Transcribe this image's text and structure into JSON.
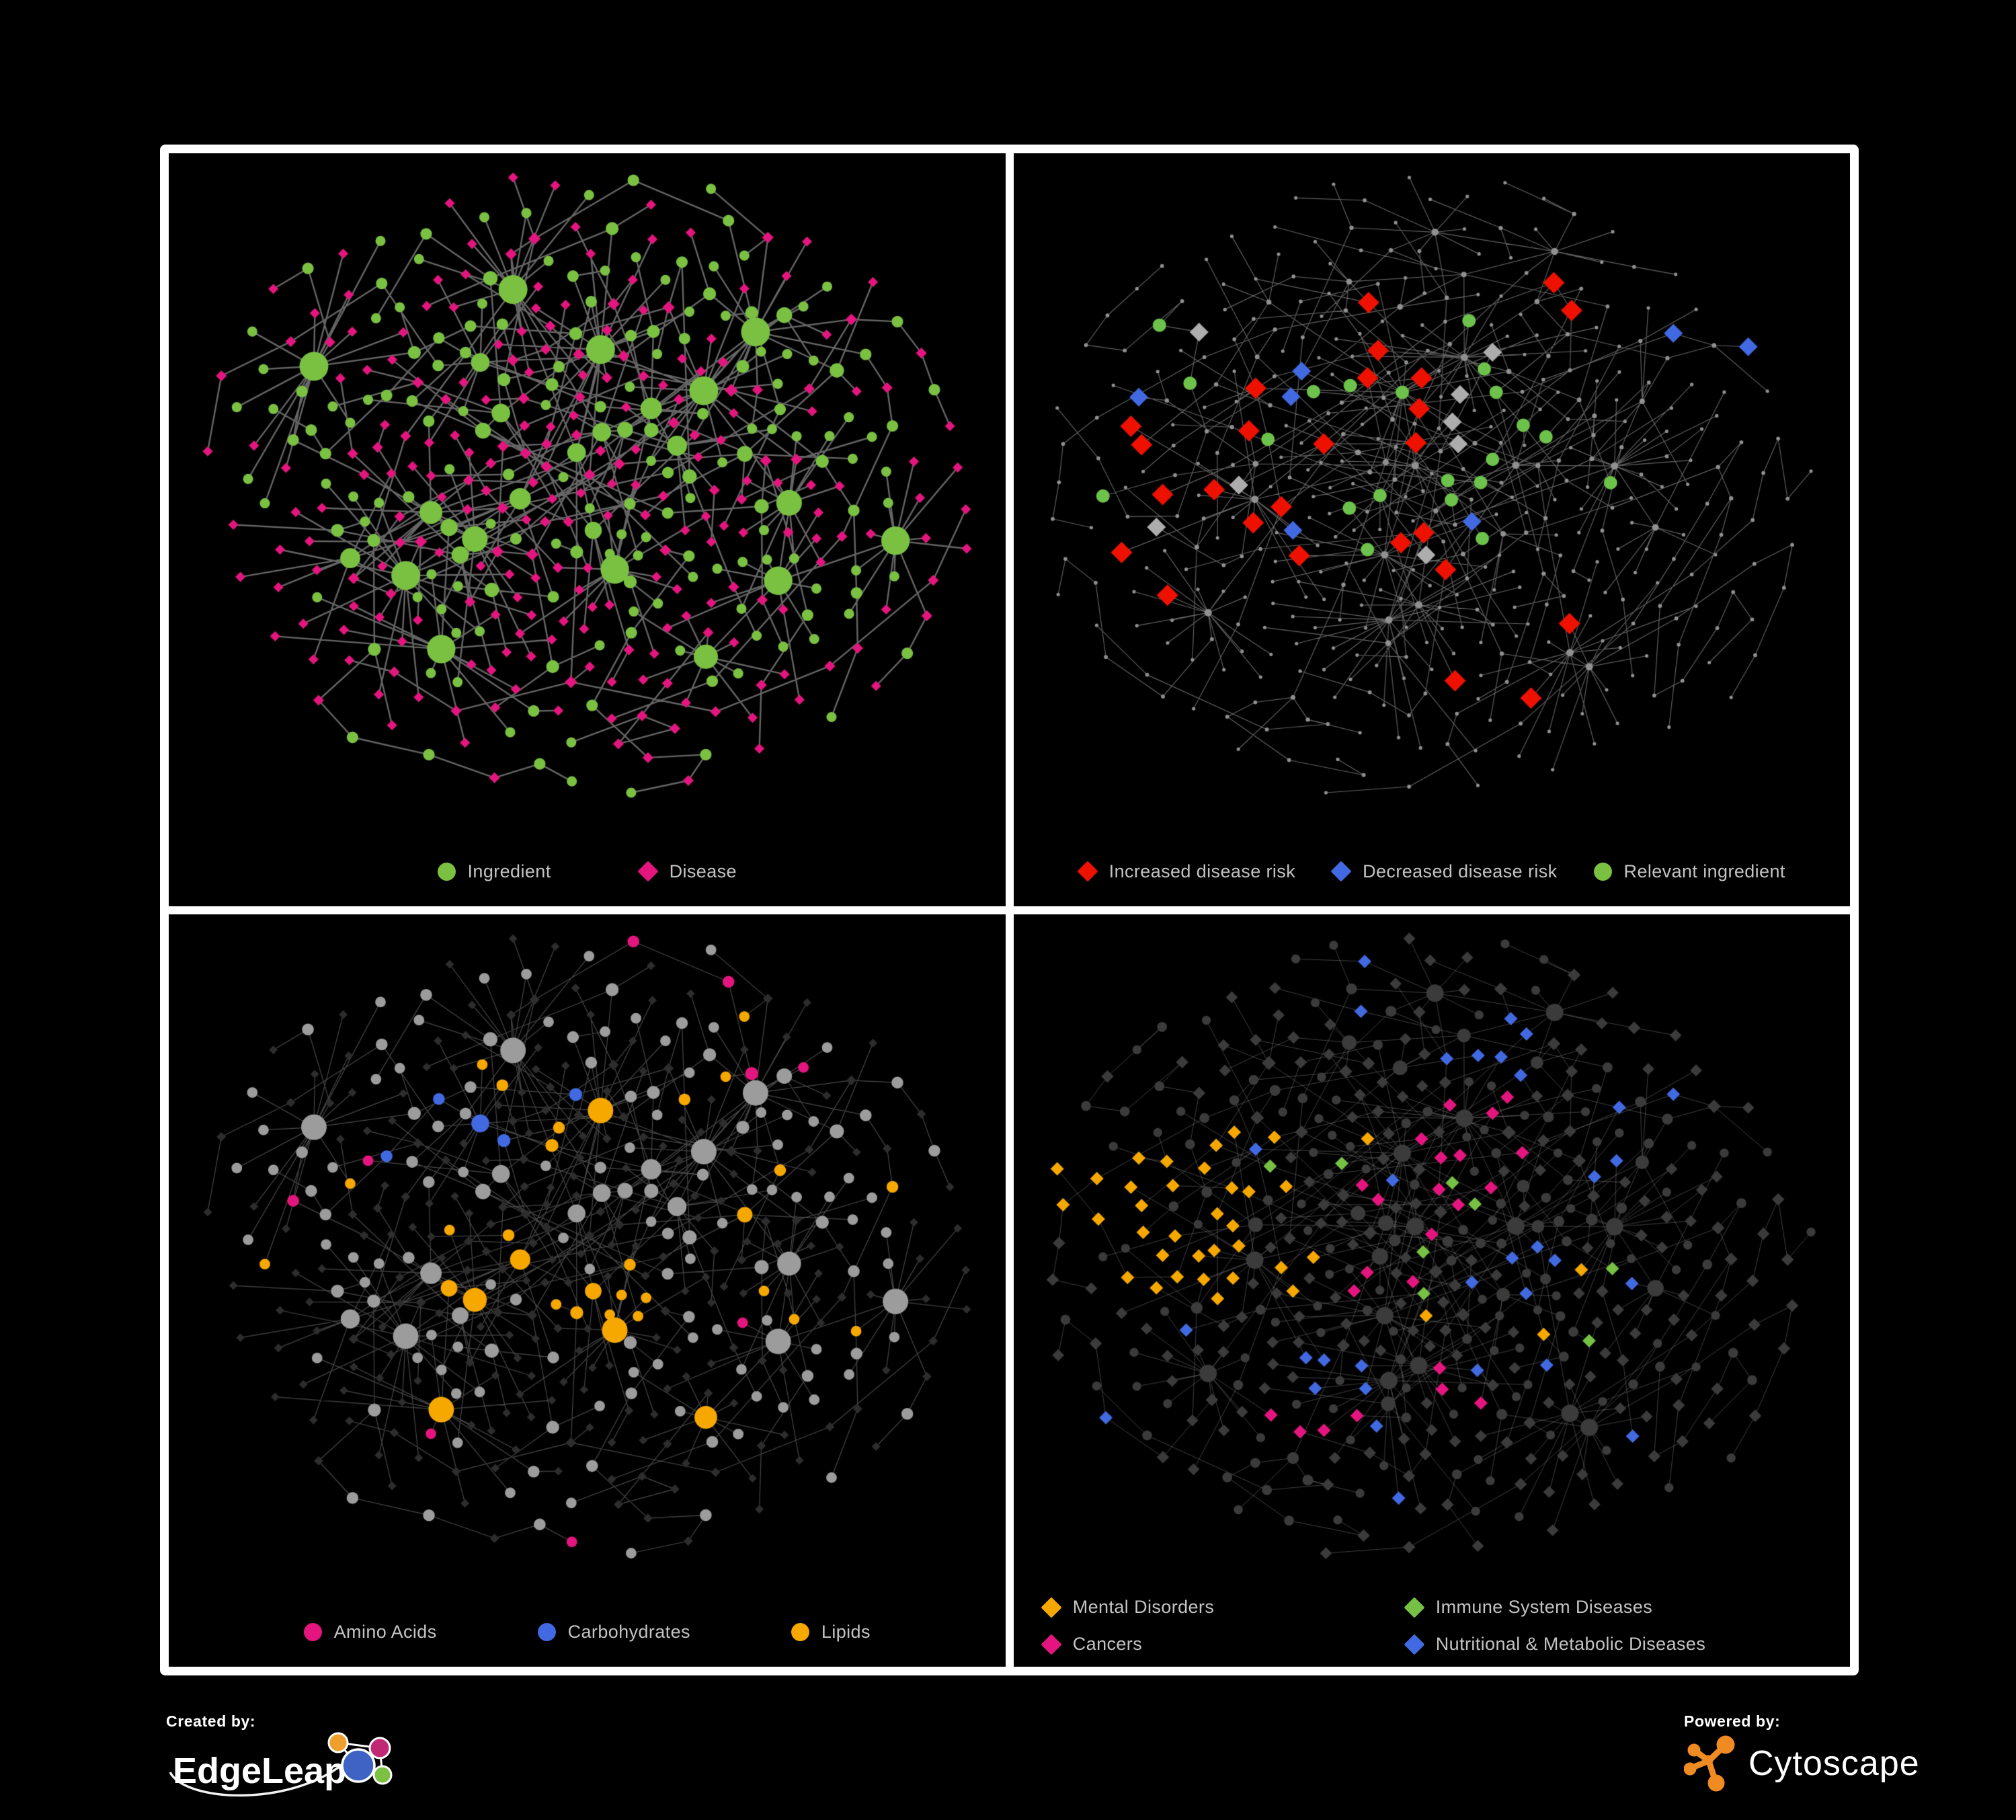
{
  "page": {
    "background": "#000000",
    "frame_color": "#ffffff"
  },
  "footer": {
    "created_by_label": "Created by:",
    "created_by_name": "EdgeLeap",
    "powered_by_label": "Powered by:",
    "powered_by_name": "Cytoscape"
  },
  "colors": {
    "ingredient_green": "#7AC142",
    "disease_magenta": "#E5157F",
    "increased_red": "#EE1100",
    "decreased_blue": "#4169E1",
    "unchanged_silver": "#ADADAD",
    "lipids_orange": "#F6A800",
    "immune_green": "#76C043",
    "edge_gray": "#6C6C6C",
    "legend_text": "#C3C3C3",
    "cytoscape_orange": "#EF8B22",
    "edgeleap_blue": "#3E63C4",
    "edgeleap_orange": "#EFA02C",
    "edgeleap_magenta": "#C02874",
    "edgeleap_green": "#7CC142"
  },
  "panels": [
    {
      "name": "ingredient-disease-network",
      "legend_layout": "row",
      "legend": [
        {
          "shape": "circle",
          "color": "#7AC142",
          "label": "Ingredient"
        },
        {
          "shape": "diamond",
          "color": "#E5157F",
          "label": "Disease"
        }
      ]
    },
    {
      "name": "disease-risk-network",
      "legend_layout": "row-tight",
      "legend": [
        {
          "shape": "diamond",
          "color": "#EE1100",
          "label": "Increased disease risk"
        },
        {
          "shape": "diamond",
          "color": "#4169E1",
          "label": "Decreased disease risk"
        },
        {
          "shape": "circle",
          "color": "#7AC142",
          "label": "Relevant ingredient"
        }
      ]
    },
    {
      "name": "compound-class-network",
      "legend_layout": "row-wide",
      "legend": [
        {
          "shape": "circle",
          "color": "#E5157F",
          "label": "Amino Acids"
        },
        {
          "shape": "circle",
          "color": "#4169E1",
          "label": "Carbohydrates"
        },
        {
          "shape": "circle",
          "color": "#F6A800",
          "label": "Lipids"
        }
      ]
    },
    {
      "name": "disease-class-network",
      "legend_layout": "grid",
      "legend": [
        {
          "shape": "diamond",
          "color": "#F6A800",
          "label": "Mental Disorders"
        },
        {
          "shape": "diamond",
          "color": "#76C043",
          "label": "Immune System Diseases"
        },
        {
          "shape": "diamond",
          "color": "#E5157F",
          "label": "Cancers"
        },
        {
          "shape": "diamond",
          "color": "#4169E1",
          "label": "Nutritional & Metabolic Diseases"
        }
      ]
    }
  ],
  "chart_data": {
    "type": "network",
    "description": "Four views of the same ingredient-disease association network rendered on black. Circles are ingredients, diamonds are diseases. Panel 1 colors nodes by type (green ingredient circles, magenta disease diamonds). Panel 2 mutes the network to small gray dots and highlights diseases with increased risk (red diamonds), decreased risk (blue diamonds), unchanged (silver diamonds) and relevant ingredients (green circles). Panel 3 highlights ingredient circles by compound class (Amino Acids pink, Carbohydrates blue, Lipids orange; others gray, diseases dark gray). Panel 4 highlights disease diamonds by disease class (Mental Disorders orange cluster at left, Cancers magenta central cluster, Nutritional & Metabolic Diseases blue scattered right, Immune System Diseases green; others dark gray).",
    "approx_nodes": 430,
    "approx_edges": 470,
    "panel_summaries": [
      {
        "panel": "ingredient-disease-network",
        "ingredient_circles_green": 160,
        "disease_diamonds_magenta": 270
      },
      {
        "panel": "disease-risk-network",
        "increased_risk_red_diamonds": 26,
        "decreased_risk_blue_diamonds": 7,
        "unchanged_silver_diamonds": 8,
        "relevant_ingredient_green_circles": 21
      },
      {
        "panel": "compound-class-network",
        "amino_acid_circles_pink": 18,
        "carbohydrate_circles_blue": 12,
        "lipid_circles_orange": 70
      },
      {
        "panel": "disease-class-network",
        "mental_disorder_diamonds_orange": 95,
        "cancer_diamonds_pink": 60,
        "nutritional_metabolic_diamonds_blue": 70,
        "immune_system_diamonds_green": 8
      }
    ]
  },
  "render": {
    "graphs": {
      "A": {
        "seed": 90210,
        "core": 250,
        "prefP": 0.8,
        "bursts": 12,
        "burstMin": 5,
        "burstMax": 16,
        "chains": 14,
        "chainMin": 2,
        "chainMax": 6,
        "cross": 34,
        "circleP": 0.4,
        "boxW": 1120,
        "boxH": 880,
        "iters": 170
      },
      "B": {
        "seed": 5150,
        "core": 270,
        "prefP": 0.78,
        "bursts": 14,
        "burstMin": 5,
        "burstMax": 14,
        "chains": 18,
        "chainMin": 3,
        "chainMax": 7,
        "cross": 30,
        "circleP": 0.38,
        "boxW": 1150,
        "boxH": 930,
        "iters": 170
      }
    },
    "panels": [
      {
        "graph": "A",
        "mode": "typed",
        "selSeed": 11,
        "edge": {
          "color": "#6C6C6C",
          "width": 2.4,
          "alpha": 0.95
        },
        "diamond": {
          "color": "#E5157F",
          "base": 7,
          "degScale": 0.55,
          "degMax": 5
        },
        "circle": {
          "color": "#7AC142",
          "base": 6.5,
          "degScale": 1.05,
          "degMax": 15
        }
      },
      {
        "graph": "B",
        "mode": "dots",
        "selSeed": 22,
        "edge": {
          "color": "#7C7C7C",
          "width": 1.15,
          "alpha": 0.8
        },
        "dot": {
          "color": "#909090",
          "base": 2.3,
          "degScale": 0.3,
          "degMax": 3.2
        },
        "highlights": [
          {
            "shape": "d",
            "color": "#EE1100",
            "r": 16,
            "regions": [
              [
                0.05,
                0.55,
                0.22,
                0.68,
                20
              ],
              [
                0.5,
                0.8,
                0.7,
                0.88,
                3
              ],
              [
                0.3,
                0.7,
                0.08,
                0.22,
                3
              ]
            ]
          },
          {
            "shape": "d",
            "color": "#4169E1",
            "r": 14,
            "regions": [
              [
                0.08,
                0.35,
                0.3,
                0.58,
                4
              ],
              [
                0.72,
                0.98,
                0.1,
                0.3,
                2
              ],
              [
                0.4,
                0.6,
                0.4,
                0.6,
                1
              ]
            ]
          },
          {
            "shape": "d",
            "color": "#ADADAD",
            "r": 14,
            "regions": [
              [
                0.1,
                0.6,
                0.25,
                0.65,
                8
              ]
            ]
          },
          {
            "shape": "c",
            "color": "#6CC24A",
            "r": 10,
            "regions": [
              [
                0.05,
                0.6,
                0.2,
                0.62,
                18
              ],
              [
                0.6,
                0.82,
                0.28,
                0.5,
                3
              ]
            ]
          }
        ]
      },
      {
        "graph": "A",
        "mode": "classes",
        "selSeed": 33,
        "classShape": "c",
        "highlightR": 0,
        "edge": {
          "color": "#8F8F8F",
          "width": 1.2,
          "alpha": 0.5
        },
        "diamond": {
          "color": "#2D2D2D",
          "base": 6,
          "degScale": 0.45,
          "degMax": 4
        },
        "circle": {
          "color": "#9C9C9C",
          "base": 7,
          "degScale": 0.9,
          "degMax": 12
        },
        "classes": [
          {
            "label": "Carbohydrates",
            "color": "#4169E1",
            "anchors": [
              [
                0.42,
                0.27
              ]
            ],
            "r": 0.07,
            "pIn": 0.45,
            "pOut": 0.015
          },
          {
            "label": "Lipids",
            "color": "#F6A800",
            "anchors": [
              [
                0.44,
                0.28
              ],
              [
                0.4,
                0.52
              ],
              [
                0.53,
                0.62
              ]
            ],
            "r": 0.1,
            "pIn": 0.7,
            "pOut": 0.1
          },
          {
            "label": "Amino Acids",
            "color": "#E5157F",
            "anchors": [],
            "pOut": 0.07
          }
        ]
      },
      {
        "graph": "B",
        "mode": "classes",
        "selSeed": 44,
        "classShape": "d",
        "highlightR": 10,
        "edge": {
          "color": "#A6A6A6",
          "width": 1,
          "alpha": 0.38
        },
        "diamond": {
          "color": "#3B3B3B",
          "base": 8.5,
          "degScale": 0.4,
          "degMax": 3
        },
        "circle": {
          "color": "#3B3B3B",
          "base": 6,
          "degScale": 0.7,
          "degMax": 7
        },
        "classes": [
          {
            "label": "Mental Disorders",
            "color": "#F6A800",
            "anchors": [
              [
                0.16,
                0.47
              ]
            ],
            "r": 0.13,
            "pIn": 0.93,
            "r2": 0.2,
            "pMid": 0.45,
            "pOut": 0.02
          },
          {
            "label": "Cancers",
            "color": "#E5157F",
            "anchors": [
              [
                0.47,
                0.42
              ],
              [
                0.42,
                0.56
              ],
              [
                0.56,
                0.33
              ]
            ],
            "r": 0.09,
            "pIn": 0.55,
            "pOut": 0.03
          },
          {
            "label": "Nutritional & Metabolic Diseases",
            "color": "#4169E1",
            "anchors": [
              [
                0.6,
                0.53
              ],
              [
                0.78,
                0.3
              ],
              [
                0.36,
                0.75
              ],
              [
                0.55,
                0.13
              ]
            ],
            "r": 0.08,
            "pIn": 0.65,
            "pOut": 0.055
          },
          {
            "label": "Immune System Diseases",
            "color": "#76C043",
            "count": 8,
            "region": [
              0.25,
              0.75,
              0.2,
              0.7
            ]
          }
        ]
      }
    ]
  }
}
